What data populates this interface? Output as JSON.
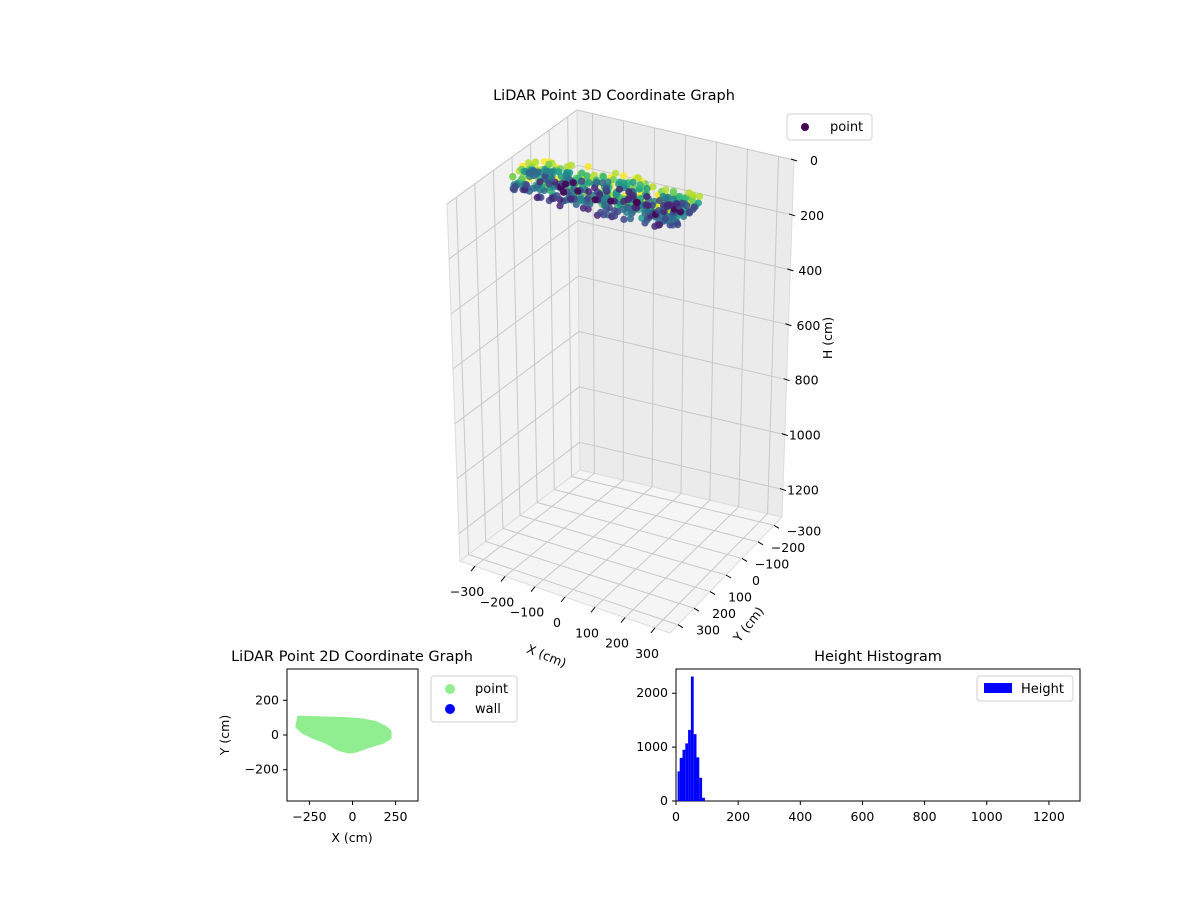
{
  "chart_data": [
    {
      "type": "scatter3d",
      "title": "LiDAR Point 3D Coordinate Graph",
      "xlabel": "X (cm)",
      "ylabel": "Y (cm)",
      "zlabel": "H (cm)",
      "xlim": [
        -350,
        350
      ],
      "ylim": [
        -350,
        350
      ],
      "zlim": [
        1300,
        0
      ],
      "xticks": [
        -300,
        -200,
        -100,
        0,
        100,
        200,
        300
      ],
      "yticks": [
        -300,
        -200,
        -100,
        0,
        100,
        200,
        300
      ],
      "zticks": [
        0,
        200,
        400,
        600,
        800,
        1000,
        1200
      ],
      "grid": true,
      "colormap": "viridis",
      "legend": {
        "location": "upper-right",
        "entries": [
          {
            "label": "point",
            "color": "#440154"
          }
        ]
      }
    },
    {
      "type": "scatter",
      "title": "LiDAR Point 2D Coordinate Graph",
      "xlabel": "X (cm)",
      "ylabel": "Y (cm)",
      "xlim": [
        -380,
        380
      ],
      "ylim": [
        -380,
        380
      ],
      "xticks": [
        -250,
        0,
        250
      ],
      "yticks": [
        -200,
        0,
        200
      ],
      "grid": false,
      "legend": {
        "location": "outside-right",
        "entries": [
          {
            "label": "point",
            "color": "#90ee90"
          },
          {
            "label": "wall",
            "color": "#0000ff"
          }
        ]
      },
      "series": [
        {
          "name": "point",
          "color": "#90ee90",
          "outline": [
            [
              -310,
              100
            ],
            [
              -250,
              98
            ],
            [
              -150,
              95
            ],
            [
              -50,
              92
            ],
            [
              50,
              85
            ],
            [
              130,
              70
            ],
            [
              185,
              45
            ],
            [
              215,
              20
            ],
            [
              215,
              -15
            ],
            [
              175,
              -40
            ],
            [
              120,
              -55
            ],
            [
              60,
              -75
            ],
            [
              20,
              -90
            ],
            [
              -20,
              -95
            ],
            [
              -80,
              -80
            ],
            [
              -150,
              -40
            ],
            [
              -230,
              -10
            ],
            [
              -290,
              20
            ],
            [
              -320,
              50
            ]
          ]
        },
        {
          "name": "wall",
          "color": "#0000ff",
          "points": []
        }
      ]
    },
    {
      "type": "histogram",
      "title": "Height Histogram",
      "xlim": [
        0,
        1300
      ],
      "ylim": [
        0,
        2450
      ],
      "xticks": [
        0,
        200,
        400,
        600,
        800,
        1000,
        1200
      ],
      "yticks": [
        0,
        1000,
        2000
      ],
      "legend": {
        "location": "upper-right",
        "entries": [
          {
            "label": "Height",
            "color": "#0000ff"
          }
        ]
      },
      "bar_color": "#0000ff",
      "bins": [
        {
          "x0": 5,
          "x1": 12,
          "count": 550
        },
        {
          "x0": 12,
          "x1": 21,
          "count": 800
        },
        {
          "x0": 21,
          "x1": 30,
          "count": 950
        },
        {
          "x0": 30,
          "x1": 39,
          "count": 1070
        },
        {
          "x0": 39,
          "x1": 48,
          "count": 1320
        },
        {
          "x0": 48,
          "x1": 57,
          "count": 2310
        },
        {
          "x0": 57,
          "x1": 66,
          "count": 1240
        },
        {
          "x0": 66,
          "x1": 75,
          "count": 810
        },
        {
          "x0": 75,
          "x1": 84,
          "count": 430
        },
        {
          "x0": 84,
          "x1": 93,
          "count": 60
        }
      ]
    }
  ]
}
